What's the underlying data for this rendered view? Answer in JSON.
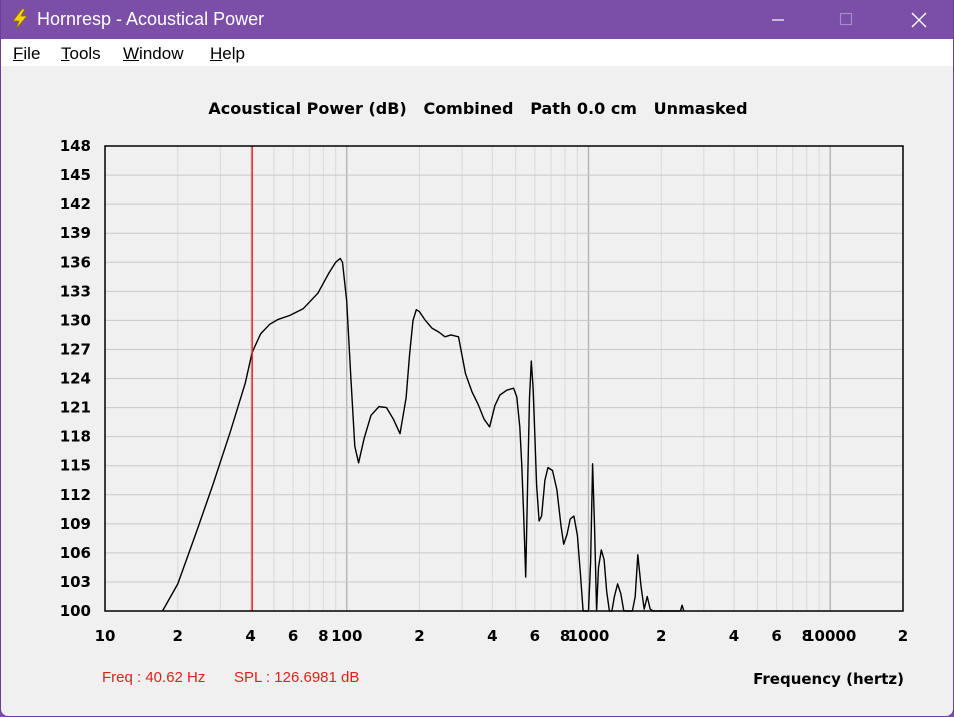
{
  "window": {
    "title": "Hornresp - Acoustical Power",
    "icon": "lightning-bolt-icon"
  },
  "menu": {
    "items": [
      {
        "key": "F",
        "rest": "ile"
      },
      {
        "key": "T",
        "rest": "ools"
      },
      {
        "key": "W",
        "rest": "indow"
      },
      {
        "key": "H",
        "rest": "elp"
      }
    ]
  },
  "status": {
    "freq": "Freq : 40.62 Hz",
    "spl": "SPL : 126.6981 dB"
  },
  "colors": {
    "titlebar": "#7b4fa8",
    "curve": "#000000",
    "cursor": "#e0201c",
    "grid": "#c8c8c8"
  },
  "chart_data": {
    "type": "line",
    "title": "Acoustical Power (dB)   Combined   Path 0.0 cm   Unmasked",
    "xlabel": "Frequency (hertz)",
    "ylabel": "",
    "x_scale": "log",
    "xlim": [
      10,
      20000
    ],
    "ylim": [
      100,
      148
    ],
    "y_ticks": [
      100,
      103,
      106,
      109,
      112,
      115,
      118,
      121,
      124,
      127,
      130,
      133,
      136,
      139,
      142,
      145,
      148
    ],
    "x_ticks": [
      {
        "value": 10,
        "label": "10"
      },
      {
        "value": 20,
        "label": "2"
      },
      {
        "value": 40,
        "label": "4"
      },
      {
        "value": 60,
        "label": "6"
      },
      {
        "value": 80,
        "label": "8"
      },
      {
        "value": 100,
        "label": "100"
      },
      {
        "value": 200,
        "label": "2"
      },
      {
        "value": 400,
        "label": "4"
      },
      {
        "value": 600,
        "label": "6"
      },
      {
        "value": 800,
        "label": "8"
      },
      {
        "value": 1000,
        "label": "1000"
      },
      {
        "value": 2000,
        "label": "2"
      },
      {
        "value": 4000,
        "label": "4"
      },
      {
        "value": 6000,
        "label": "6"
      },
      {
        "value": 8000,
        "label": "8"
      },
      {
        "value": 10000,
        "label": "10000"
      },
      {
        "value": 20000,
        "label": "2"
      }
    ],
    "grid": true,
    "cursor_x": 40.62,
    "series": [
      {
        "x": [
          17.3,
          20,
          24,
          28,
          33,
          38,
          40.62,
          44,
          48,
          52,
          58,
          66,
          76,
          84,
          90,
          94,
          96,
          100,
          104,
          108,
          112,
          118,
          126,
          136,
          146,
          156,
          166,
          176,
          182,
          188,
          194,
          200,
          210,
          225,
          240,
          255,
          270,
          290,
          310,
          330,
          350,
          370,
          390,
          410,
          430,
          460,
          490,
          505,
          520,
          530,
          540,
          550,
          560,
          570,
          580,
          590,
          600,
          610,
          625,
          640,
          660,
          680,
          710,
          740,
          770,
          790,
          815,
          840,
          870,
          900,
          925,
          950,
          975,
          1000,
          1020,
          1040,
          1060,
          1080,
          1100,
          1130,
          1160,
          1190,
          1220,
          1250,
          1280,
          1320,
          1360,
          1400,
          1440,
          1480,
          1520,
          1560,
          1600,
          1650,
          1700,
          1750,
          1800,
          1850,
          1900,
          1950,
          2000,
          2050,
          2100,
          2200,
          2400,
          2440,
          2480
        ],
        "values": [
          100,
          102.8,
          108.3,
          113.1,
          118.5,
          123.5,
          126.7,
          128.6,
          129.6,
          130.1,
          130.5,
          131.2,
          132.8,
          134.8,
          136.0,
          136.4,
          136.0,
          132.0,
          124.0,
          117.0,
          115.3,
          117.8,
          120.2,
          121.1,
          121.0,
          119.8,
          118.3,
          122.0,
          126.5,
          130.0,
          131.1,
          130.9,
          130.1,
          129.2,
          128.8,
          128.3,
          128.5,
          128.3,
          124.5,
          122.6,
          121.3,
          119.8,
          119.0,
          121.2,
          122.3,
          122.8,
          123.0,
          122.1,
          119.0,
          115.0,
          109.5,
          103.5,
          113.0,
          122.0,
          125.8,
          123.0,
          118.0,
          113.0,
          109.3,
          109.8,
          113.5,
          114.8,
          114.5,
          112.5,
          108.8,
          106.9,
          107.9,
          109.5,
          109.8,
          107.8,
          104.0,
          100,
          100,
          100,
          105.0,
          115.2,
          108.5,
          100,
          104.5,
          106.3,
          105.3,
          102.0,
          100,
          100,
          101.5,
          102.8,
          101.8,
          100,
          100,
          100,
          100,
          101.5,
          105.8,
          102.5,
          100.2,
          101.5,
          100.2,
          100,
          100,
          100,
          100,
          100,
          100,
          100,
          100,
          100.6,
          100
        ]
      }
    ]
  }
}
